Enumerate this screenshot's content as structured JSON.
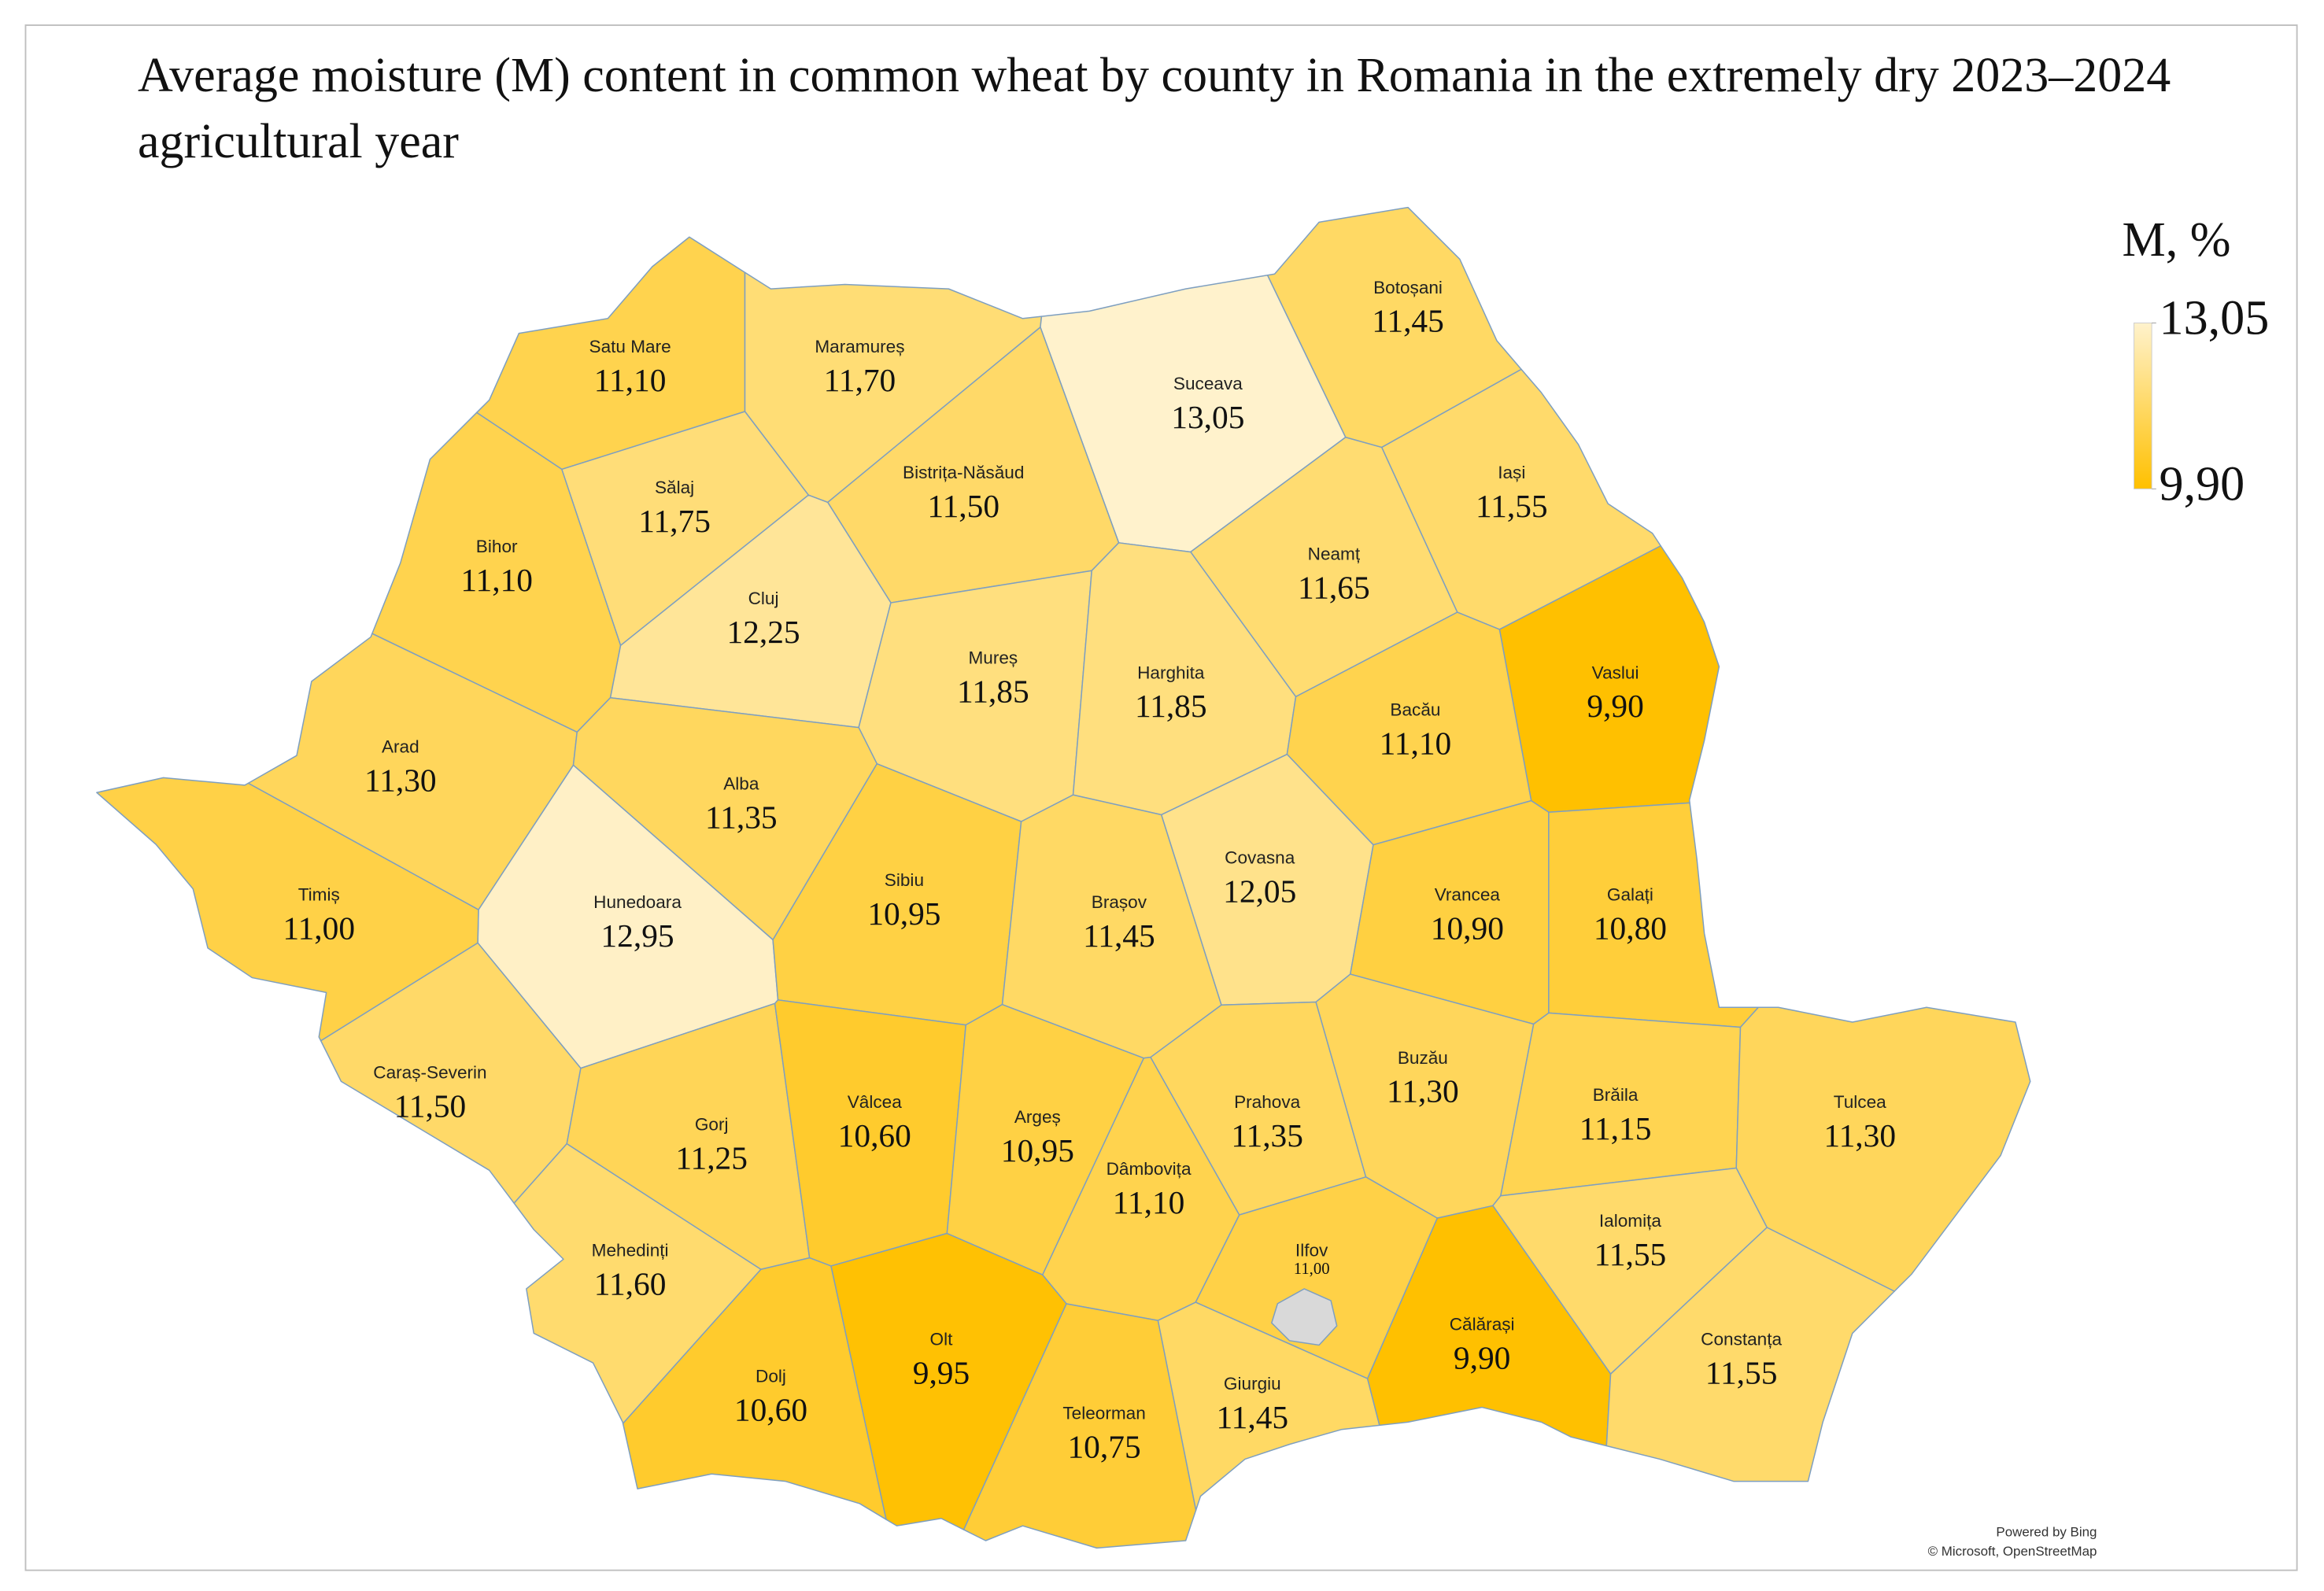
{
  "chart_data": {
    "type": "choropleth",
    "title": "Average moisture (M) content in common wheat by county in Romania in the extremely dry 2023–2024 agricultural year",
    "legend_title": "M, %",
    "color_scale": {
      "min": {
        "value": 9.9,
        "label": "9,90",
        "color": "#ffc000"
      },
      "max": {
        "value": 13.05,
        "label": "13,05",
        "color": "#fff2cc"
      }
    },
    "categories": [
      "Satu Mare",
      "Maramureș",
      "Botoșani",
      "Suceava",
      "Sălaj",
      "Bistrița-Năsăud",
      "Iași",
      "Bihor",
      "Cluj",
      "Neamț",
      "Mureș",
      "Harghita",
      "Vaslui",
      "Bacău",
      "Arad",
      "Alba",
      "Hunedoara",
      "Timiș",
      "Sibiu",
      "Brașov",
      "Covasna",
      "Vrancea",
      "Galați",
      "Caraș-Severin",
      "Gorj",
      "Vâlcea",
      "Argeș",
      "Dâmbovița",
      "Prahova",
      "Buzău",
      "Brăila",
      "Tulcea",
      "Mehedinți",
      "Ialomița",
      "Ilfov",
      "Olt",
      "Dolj",
      "Teleorman",
      "Giurgiu",
      "Călărași",
      "Constanța"
    ],
    "values": [
      11.1,
      11.7,
      11.45,
      13.05,
      11.75,
      11.5,
      11.55,
      11.1,
      12.25,
      11.65,
      11.85,
      11.85,
      9.9,
      11.1,
      11.3,
      11.35,
      12.95,
      11.0,
      10.95,
      11.45,
      12.05,
      10.9,
      10.8,
      11.5,
      11.25,
      10.6,
      10.95,
      11.1,
      11.35,
      11.3,
      11.15,
      11.3,
      11.6,
      11.55,
      11.0,
      9.95,
      10.6,
      10.75,
      11.45,
      9.9,
      11.55
    ],
    "value_labels": [
      "11,10",
      "11,70",
      "11,45",
      "13,05",
      "11,75",
      "11,50",
      "11,55",
      "11,10",
      "12,25",
      "11,65",
      "11,85",
      "11,85",
      "9,90",
      "11,10",
      "11,30",
      "11,35",
      "12,95",
      "11,00",
      "10,95",
      "11,45",
      "12,05",
      "10,90",
      "10,80",
      "11,50",
      "11,25",
      "10,60",
      "10,95",
      "11,10",
      "11,35",
      "11,30",
      "11,15",
      "11,30",
      "11,60",
      "11,55",
      "11,00",
      "9,95",
      "10,60",
      "10,75",
      "11,45",
      "9,90",
      "11,55"
    ]
  },
  "attribution": [
    "Powered by Bing",
    "© Microsoft, OpenStreetMap"
  ]
}
